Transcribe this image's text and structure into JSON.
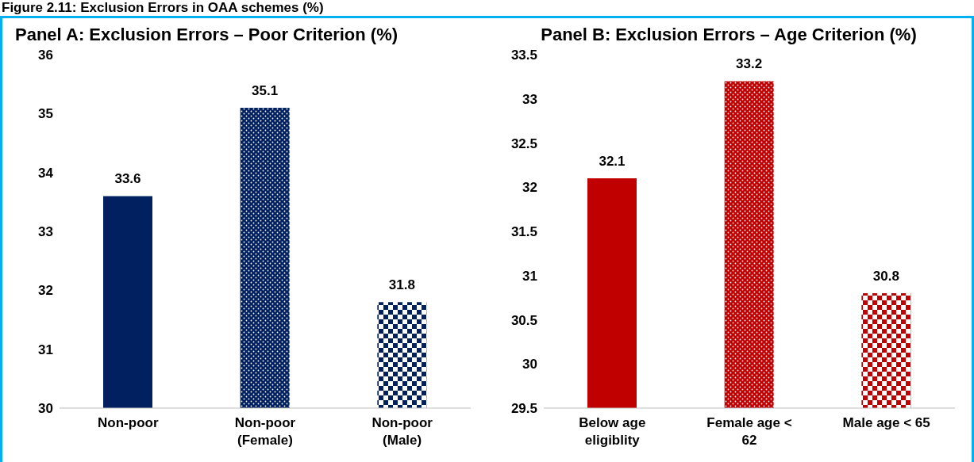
{
  "chart_data": [
    {
      "type": "bar",
      "title": "Panel A: Exclusion Errors – Poor Criterion (%)",
      "annotations": [
        "Figure 2.11: Exclusion Errors in OAA schemes (%)"
      ],
      "categories": [
        "Non-poor",
        "Non-poor (Female)",
        "Non-poor (Male)"
      ],
      "values": [
        33.6,
        35.1,
        31.8
      ],
      "colors": [
        "#002060",
        "#002060",
        "#002060"
      ],
      "ylim": [
        30,
        36
      ],
      "yticks": [
        30,
        31,
        32,
        33,
        34,
        35,
        36
      ],
      "grid": false,
      "legend": false,
      "data_labels": true
    },
    {
      "type": "bar",
      "title": "Panel B: Exclusion Errors – Age Criterion (%)",
      "categories": [
        "Below age eligiblity",
        "Female age < 62",
        "Male age < 65"
      ],
      "values": [
        32.1,
        33.2,
        30.8
      ],
      "colors": [
        "#c00000",
        "#c00000",
        "#c00000"
      ],
      "ylim": [
        29.5,
        33.5
      ],
      "yticks": [
        29.5,
        30,
        30.5,
        31,
        31.5,
        32,
        32.5,
        33,
        33.5
      ],
      "grid": false,
      "legend": false,
      "data_labels": true
    }
  ]
}
